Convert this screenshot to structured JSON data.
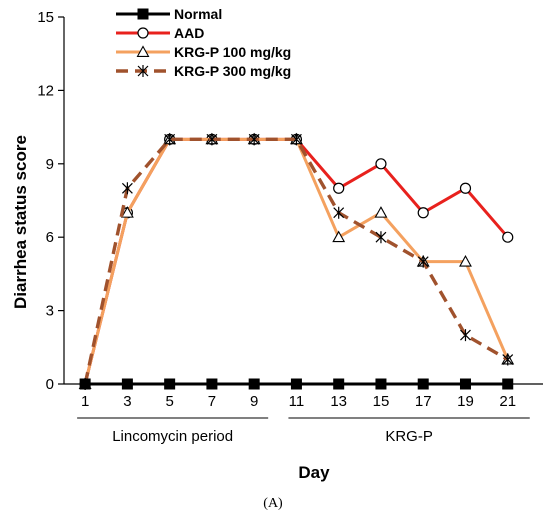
{
  "chart_data": {
    "type": "line",
    "title": "",
    "xlabel": "Day",
    "ylabel": "Diarrhea status score",
    "x": [
      1,
      3,
      5,
      7,
      9,
      11,
      13,
      15,
      17,
      19,
      21
    ],
    "x_ticks": [
      "1",
      "3",
      "5",
      "7",
      "9",
      "11",
      "13",
      "15",
      "17",
      "19",
      "21"
    ],
    "y_ticks": [
      "0",
      "3",
      "6",
      "9",
      "12",
      "15"
    ],
    "ylim": [
      0,
      15
    ],
    "grid": false,
    "legend_position": "top-left",
    "series": [
      {
        "name": "Normal",
        "color": "#000000",
        "line": "solid",
        "marker": "filled-square",
        "values": [
          0,
          0,
          0,
          0,
          0,
          0,
          0,
          0,
          0,
          0,
          0
        ]
      },
      {
        "name": "AAD",
        "color": "#e8211d",
        "line": "solid",
        "marker": "open-circle",
        "values": [
          0,
          7,
          10,
          10,
          10,
          10,
          8,
          9,
          7,
          8,
          6
        ]
      },
      {
        "name": "KRG-P 100 mg/kg",
        "color": "#f4a15f",
        "line": "solid",
        "marker": "open-triangle",
        "values": [
          0,
          7,
          10,
          10,
          10,
          10,
          6,
          7,
          5,
          5,
          1
        ]
      },
      {
        "name": "KRG-P 300 mg/kg",
        "color": "#a0522d",
        "line": "dashed",
        "marker": "asterisk",
        "values": [
          0,
          8,
          10,
          10,
          10,
          10,
          7,
          6,
          5,
          2,
          1
        ]
      }
    ],
    "periods": [
      {
        "label": "Lincomycin period",
        "from": 1,
        "to": 9
      },
      {
        "label": "KRG-P",
        "from": 11,
        "to": 21
      }
    ],
    "caption": "(A)"
  }
}
